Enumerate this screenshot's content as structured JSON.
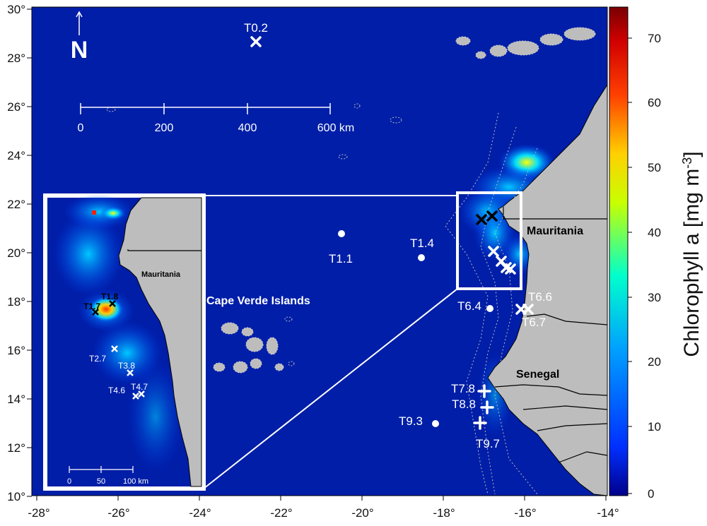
{
  "axes": {
    "x_ticks": [
      "-28°",
      "-26°",
      "-24°",
      "-22°",
      "-20°",
      "-18°",
      "-16°",
      "-14°"
    ],
    "y_ticks": [
      "30°",
      "28°",
      "26°",
      "24°",
      "22°",
      "20°",
      "18°",
      "16°",
      "14°",
      "12°",
      "10°"
    ]
  },
  "north_arrow": {
    "label": "N"
  },
  "scale_bar": {
    "labels": [
      "0",
      "200",
      "400",
      "600 km"
    ]
  },
  "inset_scale_bar": {
    "labels": [
      "0",
      "50",
      "100 km"
    ]
  },
  "regions": {
    "mauritania": "Mauritania",
    "senegal": "Senegal",
    "cape_verde": "Cape Verde Islands",
    "inset_mauritania": "Mauritania"
  },
  "stations": {
    "t0_2": "T0.2",
    "t1_1": "T1.1",
    "t1_4": "T1.4",
    "t6_4": "T6.4",
    "t6_6": "T6.6",
    "t6_7": "T6.7",
    "t7_8": "T7.8",
    "t8_8": "T8.8",
    "t9_3": "T9.3",
    "t9_7": "T9.7"
  },
  "inset_stations": {
    "t1_7": "T1.7",
    "t1_8": "T1.8",
    "t2_7": "T2.7",
    "t3_8": "T3.8",
    "t4_6": "T4.6",
    "t4_7": "T4.7"
  },
  "colorbar": {
    "title": "Chlorophyll a [mg m",
    "title_sup": "-3",
    "title_end": "]",
    "ticks": [
      "70",
      "60",
      "50",
      "40",
      "30",
      "20",
      "10",
      "0"
    ],
    "colors": [
      "#7a0000",
      "#ff0000",
      "#ff9900",
      "#ffff00",
      "#00ff99",
      "#00bfff",
      "#0050ff",
      "#00008b"
    ]
  },
  "colors": {
    "ocean": "#001ea8",
    "land": "#bdbdbd",
    "marker_white": "#ffffff",
    "marker_black": "#000000"
  }
}
